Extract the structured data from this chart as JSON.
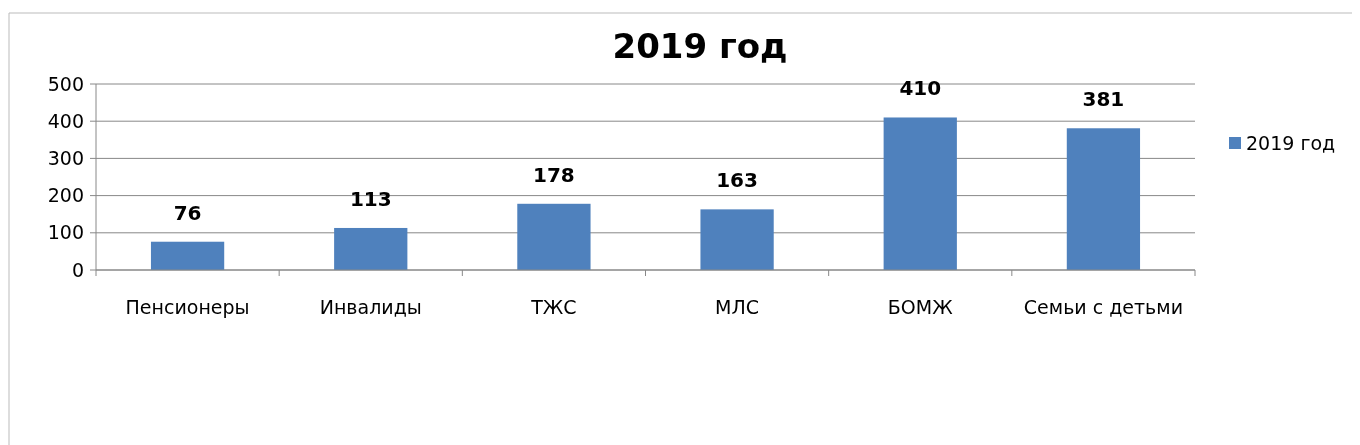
{
  "chart_data": {
    "type": "bar",
    "title": "2019 год",
    "categories": [
      "Пенсионеры",
      "Инвалиды",
      "ТЖС",
      "МЛС",
      "БОМЖ",
      "Семьи с детьми"
    ],
    "series": [
      {
        "name": "2019 год",
        "color": "#4f81bd",
        "values": [
          76,
          113,
          178,
          163,
          410,
          381
        ]
      }
    ],
    "ylim": [
      0,
      500
    ],
    "yticks": [
      0,
      100,
      200,
      300,
      400,
      500
    ],
    "grid": "y",
    "legend": "right",
    "data_labels": true
  }
}
